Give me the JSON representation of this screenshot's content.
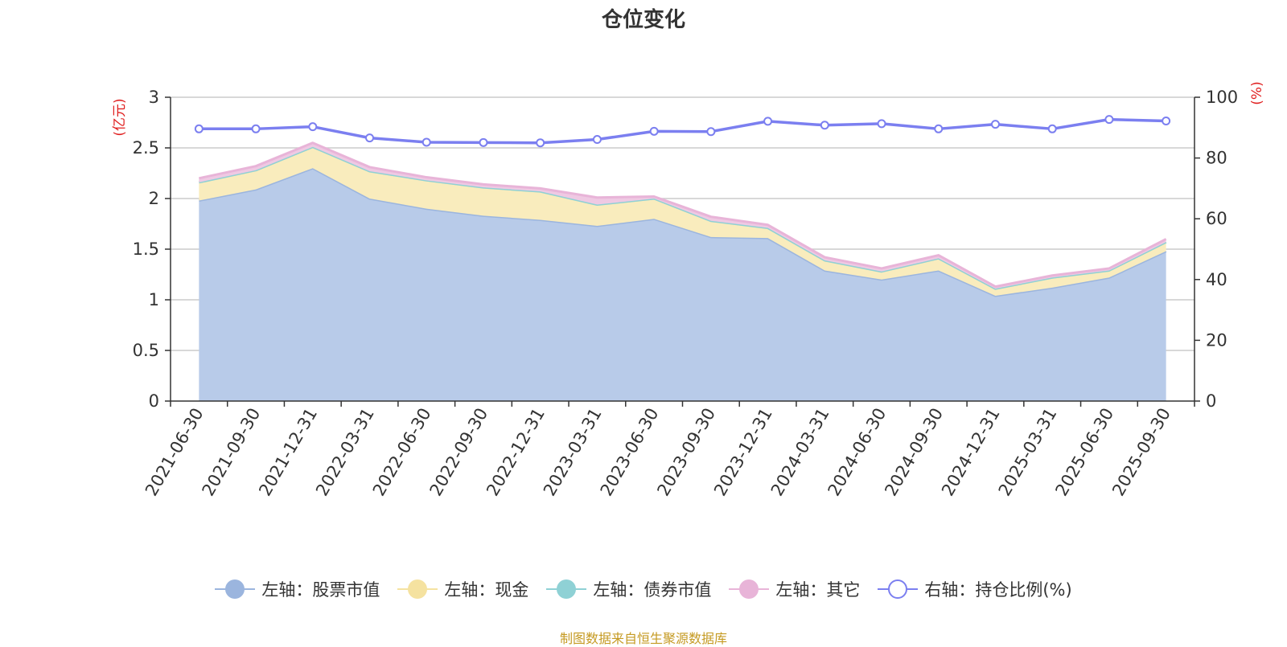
{
  "chart_data": {
    "type": "area",
    "title": "仓位变化",
    "left_axis": {
      "unit_label": "(亿元)",
      "ylim": [
        0,
        3
      ],
      "ticks": [
        "0",
        "0.5",
        "1",
        "1.5",
        "2",
        "2.5",
        "3"
      ],
      "tick_values": [
        0,
        0.5,
        1,
        1.5,
        2,
        2.5,
        3
      ]
    },
    "right_axis": {
      "unit_label": "(%)",
      "ylim": [
        0,
        100
      ],
      "ticks": [
        "0",
        "20",
        "40",
        "60",
        "80",
        "100"
      ],
      "tick_values": [
        0,
        20,
        40,
        60,
        80,
        100
      ]
    },
    "categories": [
      "2021-06-30",
      "2021-09-30",
      "2021-12-31",
      "2022-03-31",
      "2022-06-30",
      "2022-09-30",
      "2022-12-31",
      "2023-03-31",
      "2023-06-30",
      "2023-09-30",
      "2023-12-31",
      "2024-03-31",
      "2024-06-30",
      "2024-09-30",
      "2024-12-31",
      "2025-03-31",
      "2025-06-30",
      "2025-09-30"
    ],
    "series": [
      {
        "name": "左轴：股票市值",
        "axis": "left",
        "stacked": true,
        "color": "#9bb5de",
        "fill": "#b8cbe9",
        "values": [
          1.98,
          2.09,
          2.3,
          2.0,
          1.9,
          1.83,
          1.79,
          1.73,
          1.8,
          1.62,
          1.61,
          1.29,
          1.2,
          1.29,
          1.04,
          1.12,
          1.22,
          1.48
        ]
      },
      {
        "name": "左轴：现金",
        "axis": "left",
        "stacked": true,
        "color": "#f5e2a0",
        "fill": "#f9ecbd",
        "values": [
          0.18,
          0.19,
          0.21,
          0.27,
          0.28,
          0.28,
          0.28,
          0.21,
          0.2,
          0.16,
          0.1,
          0.1,
          0.08,
          0.12,
          0.07,
          0.1,
          0.07,
          0.09
        ]
      },
      {
        "name": "左轴：债券市值",
        "axis": "left",
        "stacked": true,
        "color": "#8fd1d5",
        "fill": "#b5e2e4",
        "values": [
          0,
          0,
          0,
          0,
          0,
          0,
          0,
          0,
          0,
          0,
          0,
          0,
          0,
          0,
          0,
          0,
          0,
          0
        ]
      },
      {
        "name": "左轴：其它",
        "axis": "left",
        "stacked": true,
        "color": "#e8b4d8",
        "fill": "#efc9e3",
        "values": [
          0.04,
          0.04,
          0.04,
          0.04,
          0.03,
          0.03,
          0.03,
          0.07,
          0.02,
          0.04,
          0.03,
          0.03,
          0.03,
          0.03,
          0.02,
          0.02,
          0.02,
          0.03
        ]
      },
      {
        "name": "右轴：持仓比例(%)",
        "axis": "right",
        "stacked": false,
        "color": "#7b7ff0",
        "fill": "none",
        "values": [
          89.6,
          89.6,
          90.3,
          86.6,
          85.2,
          85.1,
          85.0,
          86.1,
          88.8,
          88.7,
          92.1,
          90.8,
          91.3,
          89.6,
          91.1,
          89.6,
          92.7,
          92.2
        ]
      }
    ]
  },
  "legend": [
    {
      "label": "左轴：股票市值",
      "color": "#9bb5de",
      "hollow": false
    },
    {
      "label": "左轴：现金",
      "color": "#f5e2a0",
      "hollow": false
    },
    {
      "label": "左轴：债券市值",
      "color": "#8fd1d5",
      "hollow": false
    },
    {
      "label": "左轴：其它",
      "color": "#e8b4d8",
      "hollow": false
    },
    {
      "label": "右轴：持仓比例(%)",
      "color": "#7b7ff0",
      "hollow": true
    }
  ],
  "source_text": "制图数据来自恒生聚源数据库",
  "colors": {
    "grid": "#cccccc",
    "axis": "#333333",
    "unit_label": "#e02020"
  }
}
